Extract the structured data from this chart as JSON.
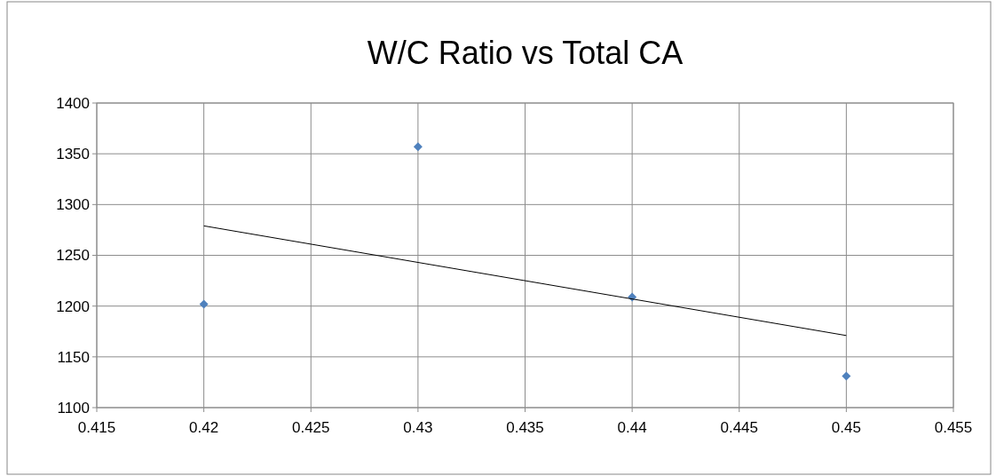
{
  "chart_data": {
    "type": "scatter",
    "title": "W/C Ratio vs Total CA",
    "series": [
      {
        "color": "#4f81bd",
        "x": [
          0.42,
          0.43,
          0.44,
          0.45
        ],
        "values": [
          1202,
          1357,
          1209,
          1131
        ],
        "marker": "diamond"
      },
      {
        "type": "line",
        "color": "#000000",
        "x": [
          0.42,
          0.45
        ],
        "values": [
          1279,
          1171
        ],
        "marker": "none"
      }
    ],
    "xlim": [
      0.415,
      0.455
    ],
    "xticks": [
      0.415,
      0.42,
      0.425,
      0.43,
      0.435,
      0.44,
      0.445,
      0.45,
      0.455
    ],
    "ylim": [
      1100,
      1400
    ],
    "yticks": [
      1100,
      1150,
      1200,
      1250,
      1300,
      1350,
      1400
    ],
    "grid": true
  }
}
